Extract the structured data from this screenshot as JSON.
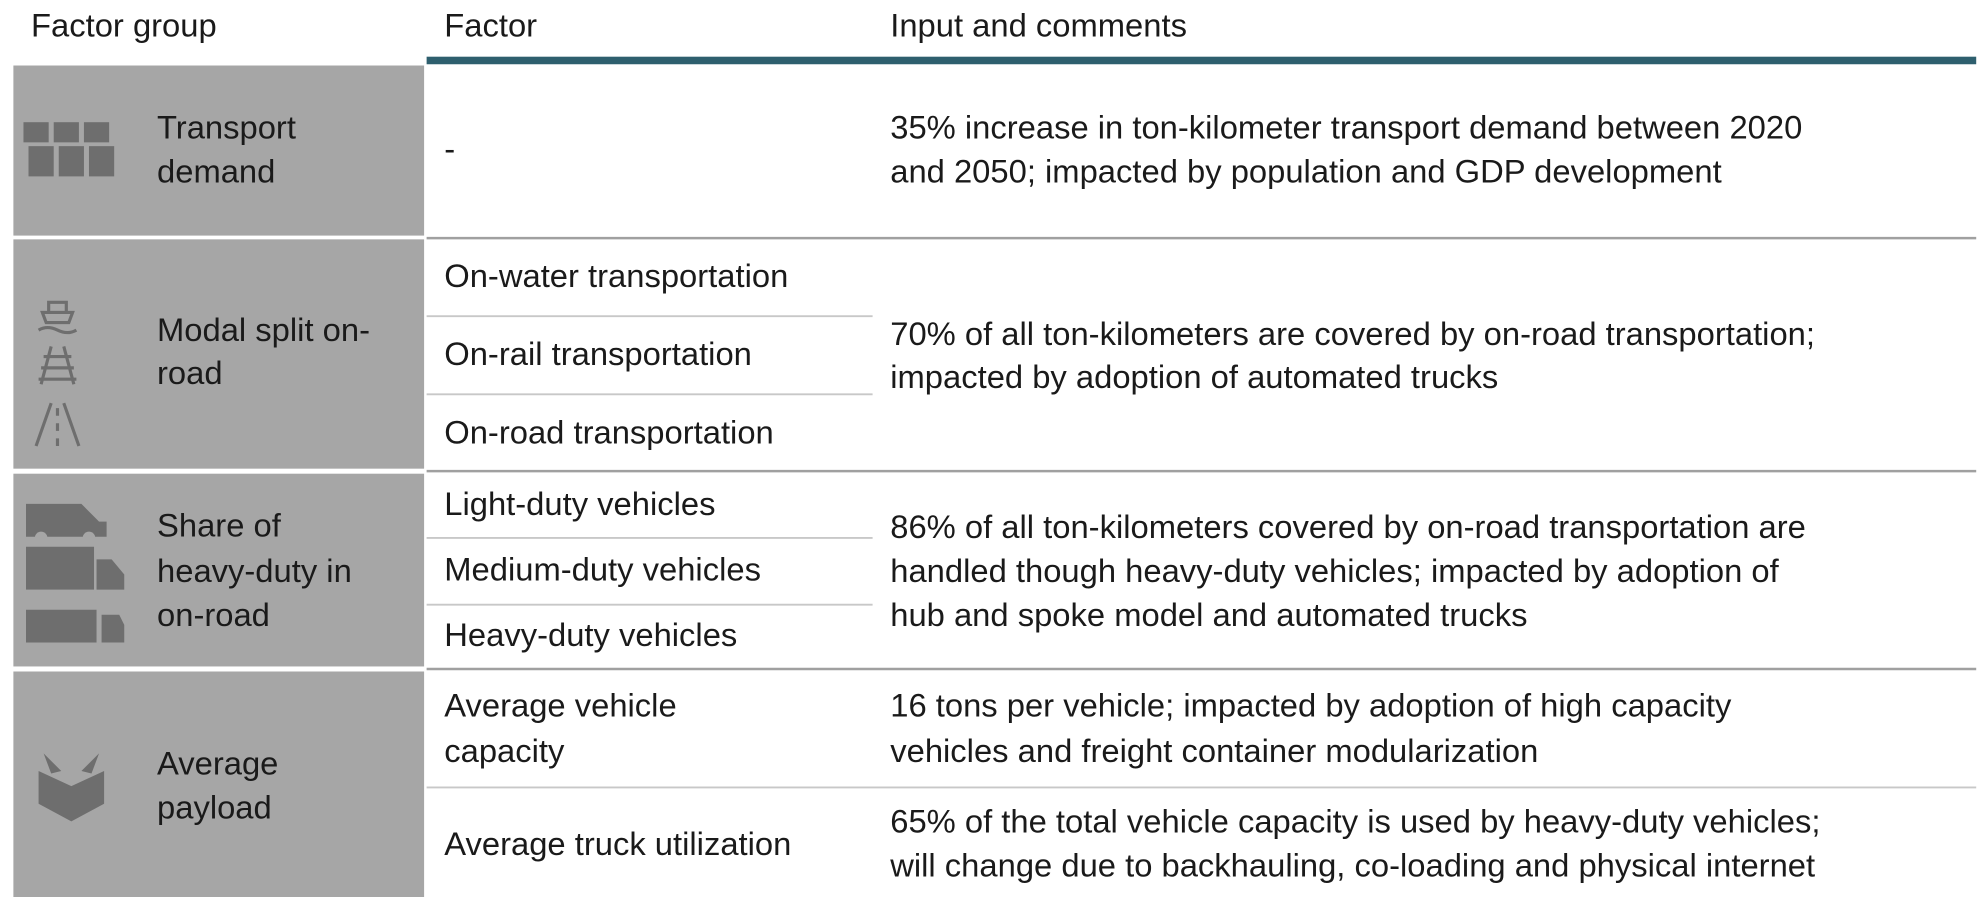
{
  "header": [
    "Factor group",
    "Factor",
    "Input and comments"
  ],
  "rows": [
    {
      "group": [
        "Transport",
        "demand"
      ],
      "factors": [
        [
          "-"
        ]
      ],
      "comments": [
        [
          "35% increase in ton-kilometer transport demand between 2020",
          "and 2050; impacted by population and GDP development"
        ]
      ]
    },
    {
      "group": [
        "Modal split on-",
        "road"
      ],
      "factors": [
        [
          "On-water transportation"
        ],
        [
          "On-rail transportation"
        ],
        [
          "On-road transportation"
        ]
      ],
      "comments": [
        [
          "70% of all ton-kilometers are covered by on-road transportation;",
          "impacted by adoption of automated trucks"
        ]
      ]
    },
    {
      "group": [
        "Share of",
        "heavy-duty in",
        "on-road"
      ],
      "factors": [
        [
          "Light-duty vehicles"
        ],
        [
          "Medium-duty vehicles"
        ],
        [
          "Heavy-duty vehicles"
        ]
      ],
      "comments": [
        [
          "86% of all ton-kilometers covered by on-road transportation are",
          "handled though heavy-duty vehicles; impacted by adoption of",
          "hub and spoke model and automated trucks"
        ]
      ]
    },
    {
      "group": [
        "Average",
        "payload"
      ],
      "factors": [
        [
          "Average vehicle",
          "capacity"
        ],
        [
          "Average truck utilization"
        ]
      ],
      "comments": [
        [
          "16 tons per vehicle; impacted by adoption of high capacity",
          "vehicles and freight container modularization"
        ],
        [
          "65% of the total vehicle capacity is used by heavy-duty vehicles;",
          "will change due to backhauling, co-loading and physical internet"
        ]
      ]
    }
  ]
}
